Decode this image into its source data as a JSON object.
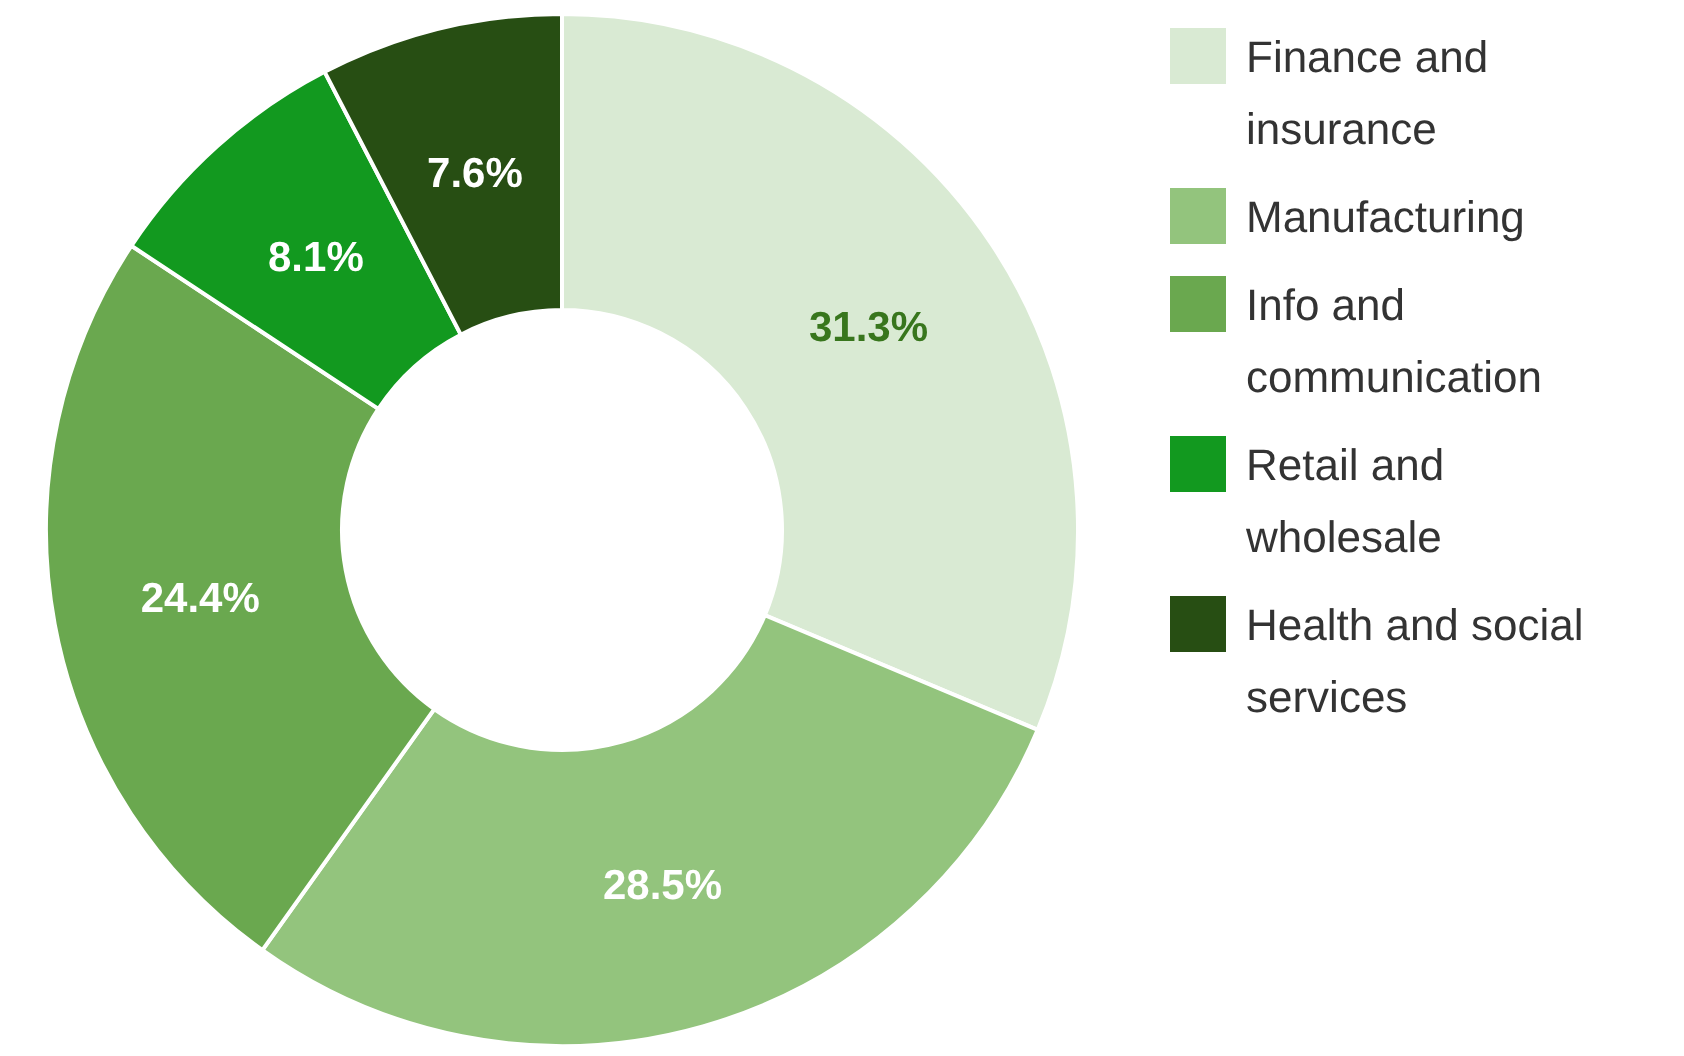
{
  "chart_data": {
    "type": "donut",
    "categories": [
      "Finance and insurance",
      "Manufacturing",
      "Info and communication",
      "Retail and wholesale",
      "Health and social services"
    ],
    "values": [
      31.3,
      28.5,
      24.4,
      8.1,
      7.6
    ],
    "colors": [
      "#d9ead3",
      "#93c47d",
      "#6aa84f",
      "#12991f",
      "#274e13"
    ],
    "value_labels": [
      "31.3%",
      "28.5%",
      "24.4%",
      "8.1%",
      "7.6%"
    ],
    "legend": "right"
  }
}
